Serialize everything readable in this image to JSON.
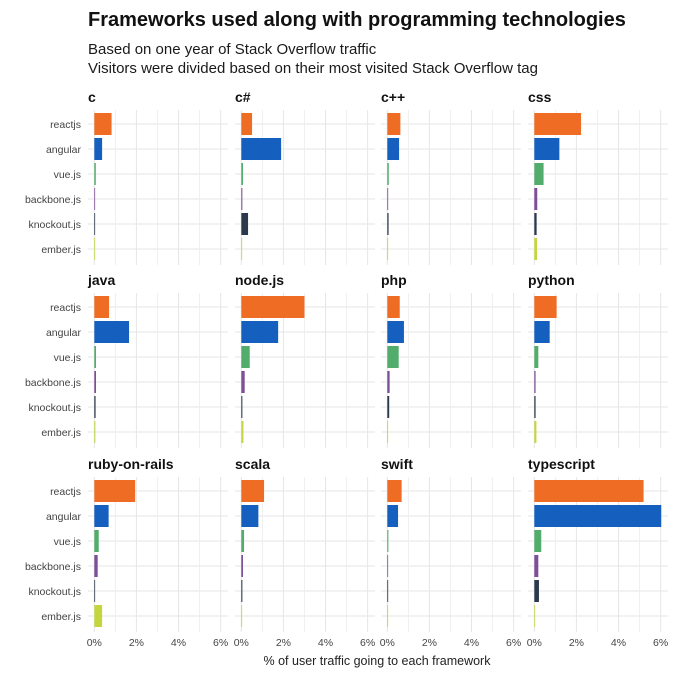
{
  "header": {
    "title": "Frameworks used along with programming technologies",
    "subtitle_line1": "Based on one year of Stack Overflow traffic",
    "subtitle_line2": "Visitors were divided based on their most visited Stack Overflow tag"
  },
  "chart_data": {
    "type": "bar",
    "orientation": "horizontal",
    "layout": "facet-grid 3 rows x 4 columns",
    "title": "Frameworks used along with programming technologies",
    "subtitle": "Based on one year of Stack Overflow traffic / Visitors were divided based on their most visited Stack Overflow tag",
    "xlabel": "% of user traffic going to each framework",
    "ylabel": "",
    "categories": [
      "reactjs",
      "angular",
      "vue.js",
      "backbone.js",
      "knockout.js",
      "ember.js"
    ],
    "category_colors": [
      "#EF6C24",
      "#1560BF",
      "#52AC6C",
      "#7D4F98",
      "#2B394D",
      "#C4D63D"
    ],
    "xlim": [
      -0.3,
      6.35
    ],
    "x_ticks": [
      0,
      2,
      4,
      6
    ],
    "x_tick_labels": [
      "0%",
      "2%",
      "4%",
      "6%"
    ],
    "x_minor_ticks": [
      1,
      3,
      5
    ],
    "grid": true,
    "legend": "none",
    "unit": "percent",
    "facets": [
      {
        "name": "c",
        "values": [
          0.82,
          0.37,
          0.07,
          0.02,
          0.03,
          0.02
        ]
      },
      {
        "name": "c#",
        "values": [
          0.51,
          1.89,
          0.08,
          0.05,
          0.32,
          0.03
        ]
      },
      {
        "name": "c++",
        "values": [
          0.62,
          0.56,
          0.07,
          0.04,
          0.06,
          0.03
        ]
      },
      {
        "name": "css",
        "values": [
          2.22,
          1.19,
          0.44,
          0.14,
          0.11,
          0.13
        ]
      },
      {
        "name": "java",
        "values": [
          0.7,
          1.65,
          0.08,
          0.08,
          0.06,
          0.05
        ]
      },
      {
        "name": "node.js",
        "values": [
          3.0,
          1.75,
          0.4,
          0.16,
          0.05,
          0.1
        ]
      },
      {
        "name": "php",
        "values": [
          0.59,
          0.79,
          0.54,
          0.11,
          0.09,
          0.03
        ]
      },
      {
        "name": "python",
        "values": [
          1.06,
          0.73,
          0.19,
          0.06,
          0.06,
          0.1
        ]
      },
      {
        "name": "ruby-on-rails",
        "values": [
          1.94,
          0.68,
          0.21,
          0.16,
          0.03,
          0.37
        ]
      },
      {
        "name": "scala",
        "values": [
          1.08,
          0.81,
          0.13,
          0.08,
          0.05,
          0.03
        ]
      },
      {
        "name": "swift",
        "values": [
          0.68,
          0.51,
          0.05,
          0.03,
          0.04,
          0.02
        ]
      },
      {
        "name": "typescript",
        "values": [
          5.19,
          6.03,
          0.33,
          0.19,
          0.22,
          0.03
        ]
      }
    ]
  }
}
